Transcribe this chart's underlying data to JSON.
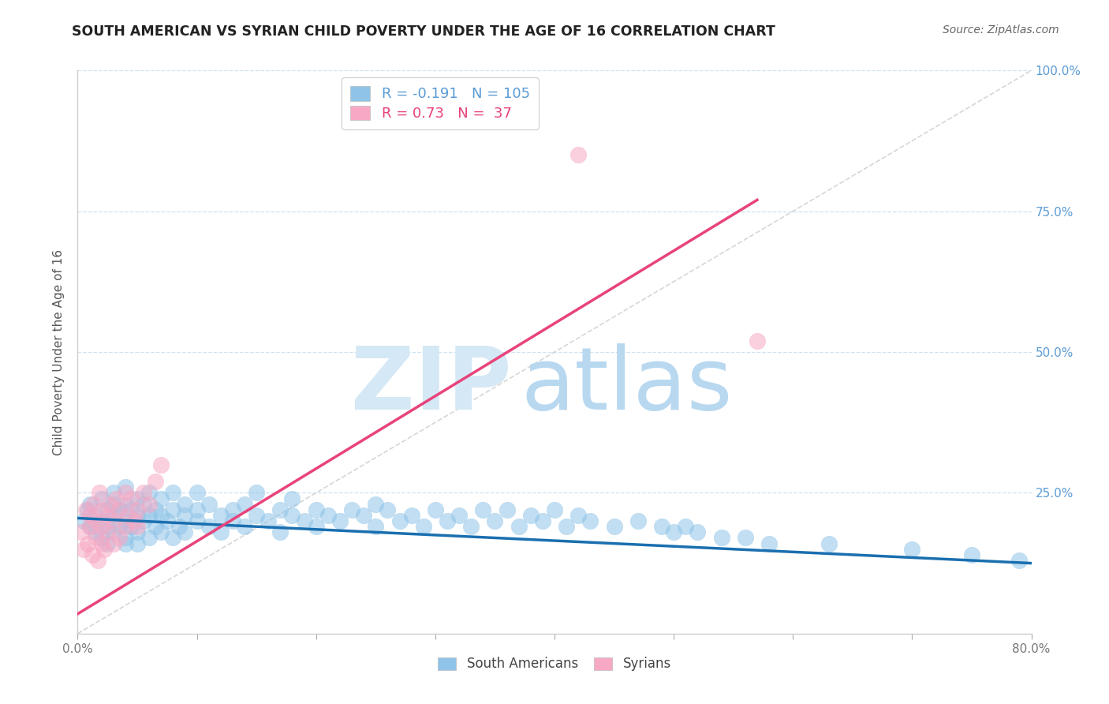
{
  "title": "SOUTH AMERICAN VS SYRIAN CHILD POVERTY UNDER THE AGE OF 16 CORRELATION CHART",
  "source": "Source: ZipAtlas.com",
  "ylabel": "Child Poverty Under the Age of 16",
  "xlim": [
    0.0,
    0.8
  ],
  "ylim": [
    0.0,
    1.0
  ],
  "xticks": [
    0.0,
    0.1,
    0.2,
    0.3,
    0.4,
    0.5,
    0.6,
    0.7,
    0.8
  ],
  "xticklabels": [
    "0.0%",
    "",
    "",
    "",
    "",
    "",
    "",
    "",
    "80.0%"
  ],
  "yticks": [
    0.0,
    0.25,
    0.5,
    0.75,
    1.0
  ],
  "right_yticklabels": [
    "",
    "25.0%",
    "50.0%",
    "75.0%",
    "100.0%"
  ],
  "south_americans_R": -0.191,
  "south_americans_N": 105,
  "syrians_R": 0.73,
  "syrians_N": 37,
  "blue_scatter_color": "#8fc4e8",
  "pink_scatter_color": "#f7a8c4",
  "blue_line_color": "#1a6faf",
  "pink_line_color": "#e8437a",
  "tick_label_color": "#5b9bd5",
  "watermark_zip_color": "#d5e8f5",
  "watermark_atlas_color": "#b8d8f0",
  "grid_color": "#c8dff0",
  "diag_color": "#cccccc",
  "south_americans_x": [
    0.005,
    0.008,
    0.01,
    0.01,
    0.015,
    0.015,
    0.02,
    0.02,
    0.02,
    0.025,
    0.025,
    0.025,
    0.03,
    0.03,
    0.03,
    0.03,
    0.035,
    0.035,
    0.04,
    0.04,
    0.04,
    0.04,
    0.04,
    0.045,
    0.045,
    0.05,
    0.05,
    0.05,
    0.05,
    0.055,
    0.055,
    0.06,
    0.06,
    0.06,
    0.065,
    0.065,
    0.07,
    0.07,
    0.07,
    0.075,
    0.08,
    0.08,
    0.08,
    0.085,
    0.09,
    0.09,
    0.09,
    0.1,
    0.1,
    0.1,
    0.11,
    0.11,
    0.12,
    0.12,
    0.13,
    0.13,
    0.14,
    0.14,
    0.15,
    0.15,
    0.16,
    0.17,
    0.17,
    0.18,
    0.18,
    0.19,
    0.2,
    0.2,
    0.21,
    0.22,
    0.23,
    0.24,
    0.25,
    0.25,
    0.26,
    0.27,
    0.28,
    0.29,
    0.3,
    0.31,
    0.32,
    0.33,
    0.34,
    0.35,
    0.36,
    0.37,
    0.38,
    0.39,
    0.4,
    0.41,
    0.42,
    0.43,
    0.45,
    0.47,
    0.49,
    0.5,
    0.51,
    0.52,
    0.54,
    0.56,
    0.58,
    0.63,
    0.7,
    0.75,
    0.79
  ],
  "south_americans_y": [
    0.2,
    0.22,
    0.19,
    0.23,
    0.18,
    0.21,
    0.17,
    0.2,
    0.24,
    0.19,
    0.22,
    0.16,
    0.18,
    0.21,
    0.23,
    0.25,
    0.19,
    0.22,
    0.17,
    0.2,
    0.23,
    0.16,
    0.26,
    0.19,
    0.22,
    0.18,
    0.21,
    0.24,
    0.16,
    0.2,
    0.23,
    0.17,
    0.21,
    0.25,
    0.19,
    0.22,
    0.18,
    0.21,
    0.24,
    0.2,
    0.17,
    0.22,
    0.25,
    0.19,
    0.21,
    0.18,
    0.23,
    0.2,
    0.22,
    0.25,
    0.19,
    0.23,
    0.21,
    0.18,
    0.22,
    0.2,
    0.23,
    0.19,
    0.21,
    0.25,
    0.2,
    0.22,
    0.18,
    0.21,
    0.24,
    0.2,
    0.22,
    0.19,
    0.21,
    0.2,
    0.22,
    0.21,
    0.23,
    0.19,
    0.22,
    0.2,
    0.21,
    0.19,
    0.22,
    0.2,
    0.21,
    0.19,
    0.22,
    0.2,
    0.22,
    0.19,
    0.21,
    0.2,
    0.22,
    0.19,
    0.21,
    0.2,
    0.19,
    0.2,
    0.19,
    0.18,
    0.19,
    0.18,
    0.17,
    0.17,
    0.16,
    0.16,
    0.15,
    0.14,
    0.13
  ],
  "syrians_x": [
    0.003,
    0.005,
    0.007,
    0.008,
    0.01,
    0.01,
    0.012,
    0.013,
    0.015,
    0.015,
    0.017,
    0.018,
    0.02,
    0.02,
    0.02,
    0.022,
    0.025,
    0.025,
    0.027,
    0.03,
    0.03,
    0.032,
    0.035,
    0.035,
    0.04,
    0.04,
    0.042,
    0.045,
    0.048,
    0.05,
    0.05,
    0.055,
    0.06,
    0.065,
    0.07,
    0.42,
    0.57
  ],
  "syrians_y": [
    0.18,
    0.15,
    0.22,
    0.16,
    0.19,
    0.21,
    0.14,
    0.23,
    0.17,
    0.2,
    0.13,
    0.25,
    0.16,
    0.19,
    0.22,
    0.15,
    0.18,
    0.21,
    0.23,
    0.16,
    0.2,
    0.24,
    0.17,
    0.22,
    0.19,
    0.25,
    0.21,
    0.24,
    0.2,
    0.22,
    0.19,
    0.25,
    0.23,
    0.27,
    0.3,
    0.85,
    0.52
  ],
  "blue_trend_x0": 0.0,
  "blue_trend_y0": 0.205,
  "blue_trend_x1": 0.8,
  "blue_trend_y1": 0.125,
  "pink_trend_x0": 0.0,
  "pink_trend_y0": 0.035,
  "pink_trend_x1": 0.57,
  "pink_trend_y1": 0.77
}
